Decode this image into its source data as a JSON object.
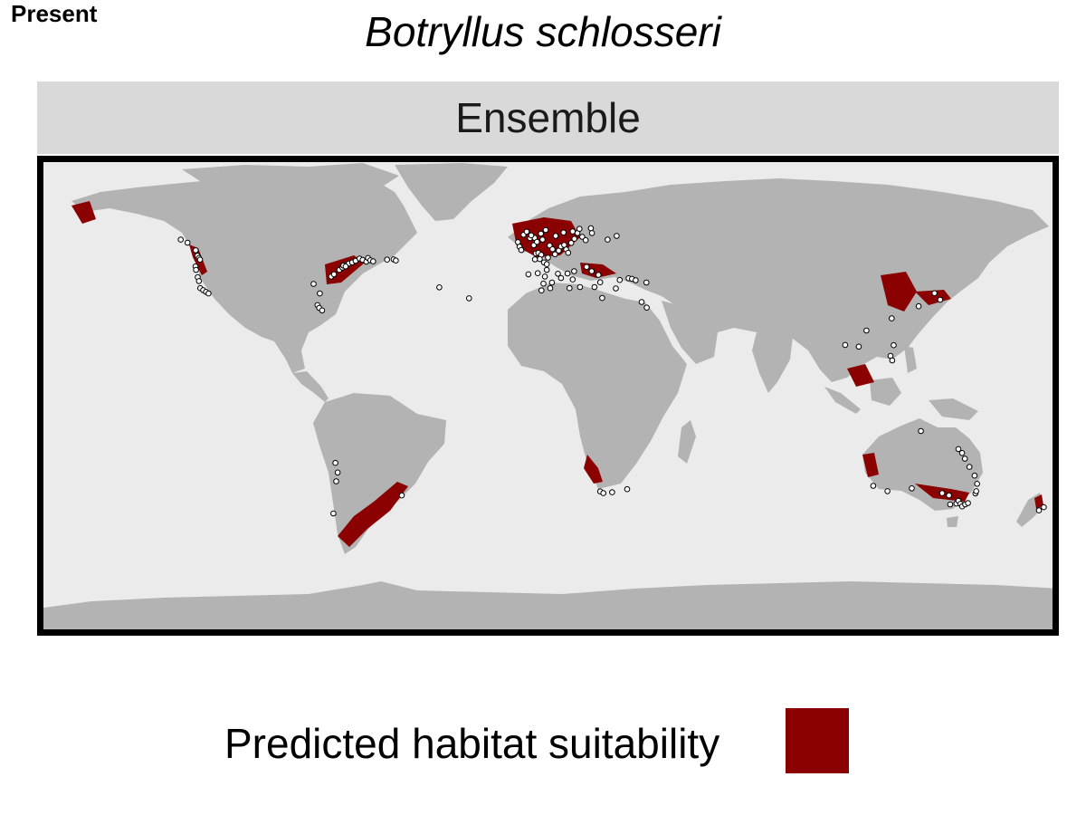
{
  "corner_label": "Present",
  "title": "Botryllus schlosseri",
  "facet_label": "Ensemble",
  "legend": {
    "label": "Predicted habitat suitability",
    "color": "#8b0000"
  },
  "colors": {
    "ocean": "#ebebeb",
    "land": "#b3b3b3",
    "suitable": "#8b0000",
    "occurrence_fill": "#ffffff",
    "occurrence_stroke": "#000000",
    "strip": "#d9d9d9"
  },
  "map": {
    "projection": "equirectangular",
    "xlim": [
      -180,
      180
    ],
    "ylim": [
      -85,
      85
    ],
    "occurrences": [
      {
        "lon": -129.4,
        "lat": 55.3
      },
      {
        "lon": -127.0,
        "lat": 54.2
      },
      {
        "lon": -124.1,
        "lat": 51.5
      },
      {
        "lon": -123.5,
        "lat": 49.6
      },
      {
        "lon": -123.0,
        "lat": 48.8
      },
      {
        "lon": -122.6,
        "lat": 48.2
      },
      {
        "lon": -124.2,
        "lat": 45.8
      },
      {
        "lon": -124.0,
        "lat": 44.6
      },
      {
        "lon": -123.4,
        "lat": 42.0
      },
      {
        "lon": -123.0,
        "lat": 40.6
      },
      {
        "lon": -122.5,
        "lat": 38.1
      },
      {
        "lon": -121.5,
        "lat": 37.4
      },
      {
        "lon": -120.5,
        "lat": 36.8
      },
      {
        "lon": -119.6,
        "lat": 36.2
      },
      {
        "lon": -81.2,
        "lat": 32.1
      },
      {
        "lon": -80.6,
        "lat": 31.1
      },
      {
        "lon": -79.6,
        "lat": 30.2
      },
      {
        "lon": -82.6,
        "lat": 39.6
      },
      {
        "lon": -80.4,
        "lat": 36.2
      },
      {
        "lon": -76.4,
        "lat": 42.2
      },
      {
        "lon": -75.4,
        "lat": 43.0
      },
      {
        "lon": -73.5,
        "lat": 44.6
      },
      {
        "lon": -72.4,
        "lat": 45.4
      },
      {
        "lon": -71.0,
        "lat": 46.4
      },
      {
        "lon": -70.2,
        "lat": 46.8
      },
      {
        "lon": -69.0,
        "lat": 47.2
      },
      {
        "lon": -67.8,
        "lat": 47.8
      },
      {
        "lon": -66.4,
        "lat": 48.6
      },
      {
        "lon": -65.3,
        "lat": 48.1
      },
      {
        "lon": -64.0,
        "lat": 47.5
      },
      {
        "lon": -63.4,
        "lat": 48.8
      },
      {
        "lon": -62.6,
        "lat": 48.0
      },
      {
        "lon": -61.6,
        "lat": 47.6
      },
      {
        "lon": -56.7,
        "lat": 48.2
      },
      {
        "lon": -54.4,
        "lat": 48.3
      },
      {
        "lon": -53.6,
        "lat": 47.9
      },
      {
        "lon": -72.1,
        "lat": 46.1
      },
      {
        "lon": -71.3,
        "lat": 45.8
      },
      {
        "lon": -38.3,
        "lat": 38.4
      },
      {
        "lon": -27.8,
        "lat": 34.5
      },
      {
        "lon": -10.6,
        "lat": 54.4
      },
      {
        "lon": -10.0,
        "lat": 52.8
      },
      {
        "lon": -9.4,
        "lat": 51.6
      },
      {
        "lon": -8.6,
        "lat": 57.0
      },
      {
        "lon": -7.5,
        "lat": 58.1
      },
      {
        "lon": -6.3,
        "lat": 55.8
      },
      {
        "lon": -5.0,
        "lat": 53.3
      },
      {
        "lon": -4.3,
        "lat": 50.4
      },
      {
        "lon": -3.4,
        "lat": 50.6
      },
      {
        "lon": -2.4,
        "lat": 49.9
      },
      {
        "lon": -1.4,
        "lat": 47.2
      },
      {
        "lon": -0.4,
        "lat": 46.6
      },
      {
        "lon": 0.6,
        "lat": 53.2
      },
      {
        "lon": 1.6,
        "lat": 51.9
      },
      {
        "lon": 2.5,
        "lat": 50.1
      },
      {
        "lon": 3.8,
        "lat": 51.4
      },
      {
        "lon": 4.6,
        "lat": 52.9
      },
      {
        "lon": 5.7,
        "lat": 53.4
      },
      {
        "lon": 6.4,
        "lat": 51.8
      },
      {
        "lon": 7.1,
        "lat": 50.6
      },
      {
        "lon": 8.2,
        "lat": 54.1
      },
      {
        "lon": 9.3,
        "lat": 55.6
      },
      {
        "lon": 10.4,
        "lat": 57.6
      },
      {
        "lon": 11.1,
        "lat": 59.1
      },
      {
        "lon": 12.1,
        "lat": 56.3
      },
      {
        "lon": 13.3,
        "lat": 55.1
      },
      {
        "lon": -6.9,
        "lat": 43.0
      },
      {
        "lon": -3.6,
        "lat": 43.4
      },
      {
        "lon": -0.4,
        "lat": 44.6
      },
      {
        "lon": -1.1,
        "lat": 42.2
      },
      {
        "lon": 1.4,
        "lat": 40.1
      },
      {
        "lon": 3.5,
        "lat": 43.2
      },
      {
        "lon": 4.6,
        "lat": 41.7
      },
      {
        "lon": -4.7,
        "lat": 55.9
      },
      {
        "lon": -2.5,
        "lat": 57.4
      },
      {
        "lon": -0.8,
        "lat": 58.7
      },
      {
        "lon": 2.7,
        "lat": 56.6
      },
      {
        "lon": 5.5,
        "lat": 57.8
      },
      {
        "lon": -5.9,
        "lat": 56.8
      },
      {
        "lon": -3.9,
        "lat": 54.5
      },
      {
        "lon": -1.9,
        "lat": 55.3
      },
      {
        "lon": 0.0,
        "lat": 48.9
      },
      {
        "lon": -2.9,
        "lat": 48.4
      },
      {
        "lon": -4.6,
        "lat": 48.3
      },
      {
        "lon": 6.9,
        "lat": 43.3
      },
      {
        "lon": 8.7,
        "lat": 41.2
      },
      {
        "lon": 11.3,
        "lat": 38.5
      },
      {
        "lon": 7.6,
        "lat": 38.1
      },
      {
        "lon": -1.6,
        "lat": 39.7
      },
      {
        "lon": -2.3,
        "lat": 37.3
      },
      {
        "lon": 0.8,
        "lat": 38.1
      },
      {
        "lon": 13.6,
        "lat": 45.6
      },
      {
        "lon": 15.4,
        "lat": 44.1
      },
      {
        "lon": 17.8,
        "lat": 42.8
      },
      {
        "lon": 23.9,
        "lat": 38.0
      },
      {
        "lon": 25.3,
        "lat": 41.0
      },
      {
        "lon": 28.4,
        "lat": 41.6
      },
      {
        "lon": 29.6,
        "lat": 41.4
      },
      {
        "lon": 30.9,
        "lat": 40.9
      },
      {
        "lon": 34.7,
        "lat": 40.1
      },
      {
        "lon": 33.0,
        "lat": 33.2
      },
      {
        "lon": 34.8,
        "lat": 31.2
      },
      {
        "lon": 19.1,
        "lat": 34.6
      },
      {
        "lon": 16.4,
        "lat": 38.5
      },
      {
        "lon": 21.0,
        "lat": 55.3
      },
      {
        "lon": 24.2,
        "lat": 56.6
      },
      {
        "lon": 15.1,
        "lat": 59.3
      },
      {
        "lon": 15.5,
        "lat": 57.6
      },
      {
        "lon": 8.7,
        "lat": 58.2
      },
      {
        "lon": 18.4,
        "lat": 40.2
      },
      {
        "lon": 9.2,
        "lat": 44.1
      },
      {
        "lon": -74.9,
        "lat": -23.8
      },
      {
        "lon": -74.1,
        "lat": -27.2
      },
      {
        "lon": -74.6,
        "lat": -30.3
      },
      {
        "lon": -75.6,
        "lat": -41.7
      },
      {
        "lon": -51.5,
        "lat": -35.3
      },
      {
        "lon": 18.4,
        "lat": -33.9
      },
      {
        "lon": 19.5,
        "lat": -34.5
      },
      {
        "lon": 22.6,
        "lat": -34.2
      },
      {
        "lon": 27.9,
        "lat": -33.1
      },
      {
        "lon": 104.7,
        "lat": 18.0
      },
      {
        "lon": 109.5,
        "lat": 17.4
      },
      {
        "lon": 112.2,
        "lat": 23.1
      },
      {
        "lon": 121.1,
        "lat": 27.4
      },
      {
        "lon": 130.6,
        "lat": 31.7
      },
      {
        "lon": 138.2,
        "lat": 34.0
      },
      {
        "lon": 136.2,
        "lat": 36.3
      },
      {
        "lon": 120.7,
        "lat": 14.1
      },
      {
        "lon": 121.3,
        "lat": 12.5
      },
      {
        "lon": 121.8,
        "lat": 17.9
      },
      {
        "lon": 131.4,
        "lat": -12.5
      },
      {
        "lon": 114.6,
        "lat": -31.9
      },
      {
        "lon": 119.6,
        "lat": -33.8
      },
      {
        "lon": 128.2,
        "lat": -32.8
      },
      {
        "lon": 138.9,
        "lat": -34.5
      },
      {
        "lon": 141.3,
        "lat": -35.3
      },
      {
        "lon": 143.9,
        "lat": -38.2
      },
      {
        "lon": 144.6,
        "lat": -37.2
      },
      {
        "lon": 145.3,
        "lat": -38.3
      },
      {
        "lon": 145.9,
        "lat": -39.2
      },
      {
        "lon": 147.0,
        "lat": -38.5
      },
      {
        "lon": 148.0,
        "lat": -38.0
      },
      {
        "lon": 150.6,
        "lat": -34.6
      },
      {
        "lon": 150.9,
        "lat": -33.8
      },
      {
        "lon": 151.2,
        "lat": -31.2
      },
      {
        "lon": 150.3,
        "lat": -28.3
      },
      {
        "lon": 148.5,
        "lat": -25.2
      },
      {
        "lon": 146.9,
        "lat": -22.3
      },
      {
        "lon": 145.9,
        "lat": -20.3
      },
      {
        "lon": 144.6,
        "lat": -18.9
      },
      {
        "lon": 141.7,
        "lat": -38.5
      },
      {
        "lon": 173.0,
        "lat": -40.6
      },
      {
        "lon": 174.7,
        "lat": -39.5
      }
    ]
  }
}
